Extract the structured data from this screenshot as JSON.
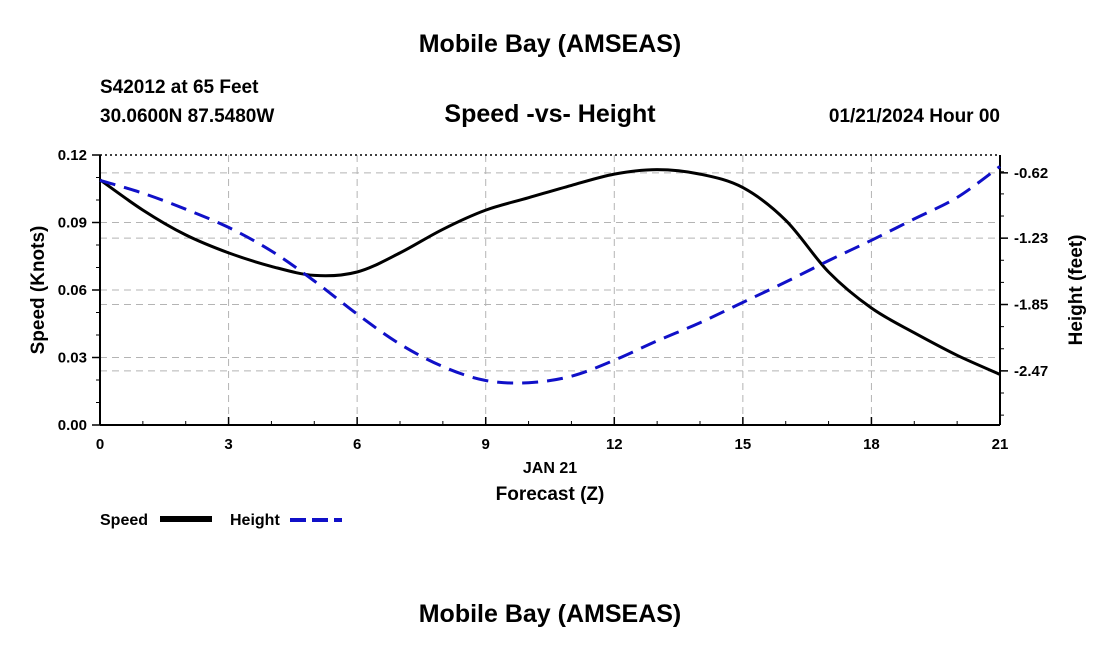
{
  "header": {
    "title": "Mobile Bay (AMSEAS)",
    "station": "S42012 at 65 Feet",
    "coords": "30.0600N  87.5480W",
    "date_hour": "01/21/2024 Hour 00"
  },
  "footer": {
    "title": "Mobile Bay (AMSEAS)"
  },
  "chart_data": {
    "type": "line",
    "title": "Speed -vs- Height",
    "xlabel": "Forecast (Z)",
    "xsublabel": "JAN 21",
    "ylabel": "Speed (Knots)",
    "y2label": "Height (feet)",
    "xlim": [
      0,
      21
    ],
    "ylim": [
      0,
      0.12
    ],
    "y2lim": [
      -2.9756,
      -0.4533
    ],
    "x_ticks": [
      0,
      3,
      6,
      9,
      12,
      15,
      18,
      21
    ],
    "x_tick_labels": [
      "0",
      "3",
      "6",
      "9",
      "12",
      "15",
      "18",
      "21"
    ],
    "y_ticks": [
      0,
      0.03,
      0.06,
      0.09,
      0.12
    ],
    "y_tick_labels": [
      "0.00",
      "0.03",
      "0.06",
      "0.09",
      "0.12"
    ],
    "y2_ticks": [
      -2.47,
      -1.85,
      -1.23,
      -0.62
    ],
    "y2_tick_labels": [
      "-2.47",
      "-1.85",
      "-1.23",
      "-0.62"
    ],
    "grid": true,
    "legend_position": "bottom-left",
    "x": [
      0,
      1,
      2,
      3,
      4,
      5,
      6,
      7,
      8,
      9,
      10,
      11,
      12,
      13,
      14,
      15,
      16,
      17,
      18,
      19,
      20,
      21
    ],
    "series": [
      {
        "name": "Speed",
        "axis": "left",
        "color": "#000000",
        "style": "solid",
        "values": [
          0.109,
          0.0955,
          0.0845,
          0.0765,
          0.0705,
          0.0665,
          0.068,
          0.0765,
          0.087,
          0.0955,
          0.101,
          0.1065,
          0.1115,
          0.1135,
          0.1115,
          0.1055,
          0.091,
          0.068,
          0.052,
          0.041,
          0.031,
          0.0225
        ]
      },
      {
        "name": "Height",
        "axis": "right",
        "color": "#1010c8",
        "style": "dashed",
        "values": [
          -0.69,
          -0.81,
          -0.96,
          -1.13,
          -1.35,
          -1.63,
          -1.94,
          -2.22,
          -2.43,
          -2.56,
          -2.58,
          -2.52,
          -2.37,
          -2.19,
          -2.02,
          -1.83,
          -1.64,
          -1.44,
          -1.25,
          -1.05,
          -0.85,
          -0.56
        ]
      }
    ]
  }
}
